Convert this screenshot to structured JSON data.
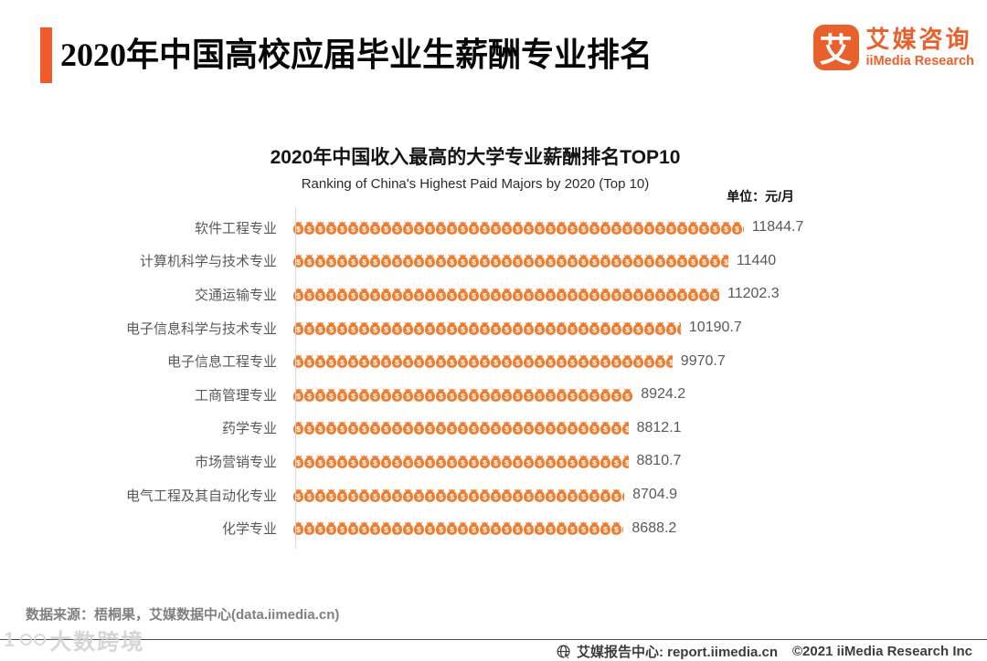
{
  "header": {
    "title": "2020年中国高校应届毕业生薪酬专业排名",
    "logo": {
      "mark_char": "艾",
      "name_cn": "艾媒咨询",
      "name_en": "iiMedia Research",
      "color": "#E8612C"
    }
  },
  "chart": {
    "title": "2020年中国收入最高的大学专业薪酬排名TOP10",
    "subtitle": "Ranking of China's Highest Paid Majors by 2020 (Top 10)",
    "unit_label": "单位：元/月"
  },
  "chart_data": {
    "type": "bar",
    "orientation": "horizontal",
    "pictogram_icon": "money-bag-icon",
    "title": "2020年中国收入最高的大学专业薪酬排名TOP10",
    "subtitle": "Ranking of China's Highest Paid Majors by 2020 (Top 10)",
    "unit": "元/月",
    "categories": [
      "软件工程专业",
      "计算机科学与技术专业",
      "交通运输专业",
      "电子信息科学与技术专业",
      "电子信息工程专业",
      "工商管理专业",
      "药学专业",
      "市场营销专业",
      "电气工程及其自动化专业",
      "化学专业"
    ],
    "values": [
      11844.7,
      11440,
      11202.3,
      10190.7,
      9970.7,
      8924.2,
      8812.1,
      8810.7,
      8704.9,
      8688.2
    ],
    "value_labels": [
      "11844.7",
      "11440",
      "11202.3",
      "10190.7",
      "9970.7",
      "8924.2",
      "8812.1",
      "8810.7",
      "8704.9",
      "8688.2"
    ],
    "xlim": [
      0,
      12000
    ],
    "bar_color": "#ED7D31",
    "grid": "off",
    "legend": "none"
  },
  "footer": {
    "source": "数据来源：梧桐果，艾媒数据中心(data.iimedia.cn)",
    "report_center": "艾媒报告中心: report.iimedia.cn",
    "copyright": "©2021  iiMedia Research Inc",
    "watermark": "大数跨境"
  }
}
